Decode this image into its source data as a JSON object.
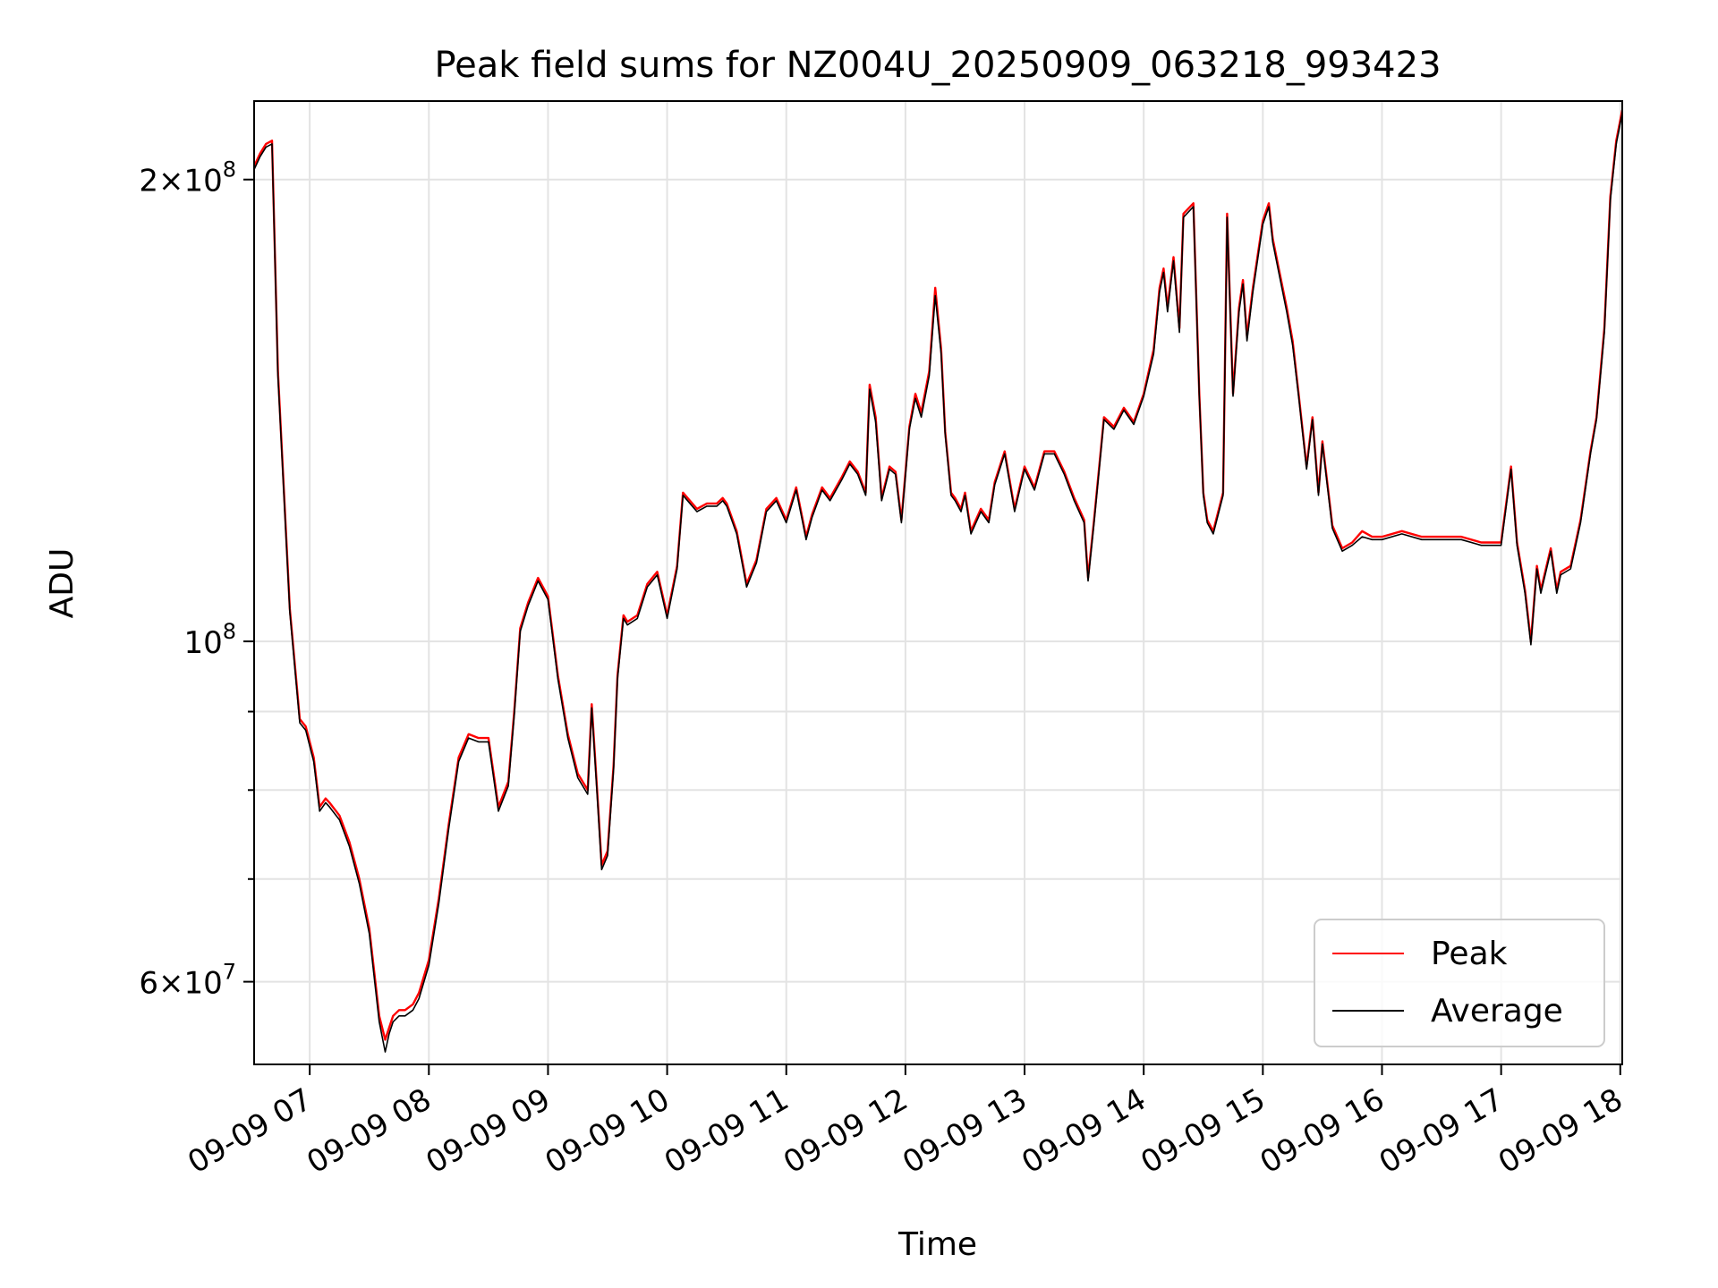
{
  "chart_data": {
    "type": "line",
    "title": "Peak field sums for NZ004U_20250909_063218_993423",
    "xlabel": "Time",
    "ylabel": "ADU",
    "y_scale": "log",
    "ylim": [
      53000000,
      225000000
    ],
    "xlim": [
      "2025-09-09 06:32",
      "2025-09-09 18:01"
    ],
    "grid": true,
    "legend_position": "lower-right",
    "x_ticks": [
      {
        "t": "2025-09-09 07:00",
        "label": "09-09 07"
      },
      {
        "t": "2025-09-09 08:00",
        "label": "09-09 08"
      },
      {
        "t": "2025-09-09 09:00",
        "label": "09-09 09"
      },
      {
        "t": "2025-09-09 10:00",
        "label": "09-09 10"
      },
      {
        "t": "2025-09-09 11:00",
        "label": "09-09 11"
      },
      {
        "t": "2025-09-09 12:00",
        "label": "09-09 12"
      },
      {
        "t": "2025-09-09 13:00",
        "label": "09-09 13"
      },
      {
        "t": "2025-09-09 14:00",
        "label": "09-09 14"
      },
      {
        "t": "2025-09-09 15:00",
        "label": "09-09 15"
      },
      {
        "t": "2025-09-09 16:00",
        "label": "09-09 16"
      },
      {
        "t": "2025-09-09 17:00",
        "label": "09-09 17"
      },
      {
        "t": "2025-09-09 18:00",
        "label": "09-09 18"
      }
    ],
    "y_major_ticks": [
      {
        "value": 60000000,
        "mantissa": "6",
        "exponent": "7"
      },
      {
        "value": 100000000,
        "mantissa": "",
        "exponent": "8"
      },
      {
        "value": 200000000,
        "mantissa": "2",
        "exponent": "8"
      }
    ],
    "y_minor_ticks": [
      70000000,
      80000000,
      90000000
    ],
    "series": [
      {
        "name": "Peak",
        "color": "#ff0000",
        "x": [
          "2025-09-09 06:32",
          "2025-09-09 06:35",
          "2025-09-09 06:38",
          "2025-09-09 06:41",
          "2025-09-09 06:44",
          "2025-09-09 06:50",
          "2025-09-09 06:55",
          "2025-09-09 06:58",
          "2025-09-09 07:02",
          "2025-09-09 07:05",
          "2025-09-09 07:08",
          "2025-09-09 07:10",
          "2025-09-09 07:15",
          "2025-09-09 07:20",
          "2025-09-09 07:25",
          "2025-09-09 07:30",
          "2025-09-09 07:35",
          "2025-09-09 07:38",
          "2025-09-09 07:40",
          "2025-09-09 07:42",
          "2025-09-09 07:45",
          "2025-09-09 07:48",
          "2025-09-09 07:52",
          "2025-09-09 07:55",
          "2025-09-09 08:00",
          "2025-09-09 08:05",
          "2025-09-09 08:10",
          "2025-09-09 08:15",
          "2025-09-09 08:20",
          "2025-09-09 08:25",
          "2025-09-09 08:30",
          "2025-09-09 08:35",
          "2025-09-09 08:40",
          "2025-09-09 08:43",
          "2025-09-09 08:46",
          "2025-09-09 08:50",
          "2025-09-09 08:55",
          "2025-09-09 09:00",
          "2025-09-09 09:05",
          "2025-09-09 09:10",
          "2025-09-09 09:15",
          "2025-09-09 09:20",
          "2025-09-09 09:22",
          "2025-09-09 09:25",
          "2025-09-09 09:27",
          "2025-09-09 09:30",
          "2025-09-09 09:33",
          "2025-09-09 09:35",
          "2025-09-09 09:38",
          "2025-09-09 09:40",
          "2025-09-09 09:45",
          "2025-09-09 09:50",
          "2025-09-09 09:55",
          "2025-09-09 10:00",
          "2025-09-09 10:05",
          "2025-09-09 10:08",
          "2025-09-09 10:15",
          "2025-09-09 10:20",
          "2025-09-09 10:25",
          "2025-09-09 10:28",
          "2025-09-09 10:30",
          "2025-09-09 10:35",
          "2025-09-09 10:40",
          "2025-09-09 10:45",
          "2025-09-09 10:50",
          "2025-09-09 10:55",
          "2025-09-09 11:00",
          "2025-09-09 11:05",
          "2025-09-09 11:10",
          "2025-09-09 11:13",
          "2025-09-09 11:18",
          "2025-09-09 11:22",
          "2025-09-09 11:28",
          "2025-09-09 11:32",
          "2025-09-09 11:36",
          "2025-09-09 11:40",
          "2025-09-09 11:42",
          "2025-09-09 11:45",
          "2025-09-09 11:48",
          "2025-09-09 11:52",
          "2025-09-09 11:55",
          "2025-09-09 11:58",
          "2025-09-09 12:02",
          "2025-09-09 12:05",
          "2025-09-09 12:08",
          "2025-09-09 12:12",
          "2025-09-09 12:15",
          "2025-09-09 12:18",
          "2025-09-09 12:20",
          "2025-09-09 12:23",
          "2025-09-09 12:25",
          "2025-09-09 12:28",
          "2025-09-09 12:30",
          "2025-09-09 12:33",
          "2025-09-09 12:38",
          "2025-09-09 12:42",
          "2025-09-09 12:45",
          "2025-09-09 12:50",
          "2025-09-09 12:55",
          "2025-09-09 13:00",
          "2025-09-09 13:05",
          "2025-09-09 13:10",
          "2025-09-09 13:15",
          "2025-09-09 13:20",
          "2025-09-09 13:25",
          "2025-09-09 13:30",
          "2025-09-09 13:32",
          "2025-09-09 13:35",
          "2025-09-09 13:40",
          "2025-09-09 13:45",
          "2025-09-09 13:50",
          "2025-09-09 13:55",
          "2025-09-09 14:00",
          "2025-09-09 14:05",
          "2025-09-09 14:08",
          "2025-09-09 14:10",
          "2025-09-09 14:12",
          "2025-09-09 14:15",
          "2025-09-09 14:18",
          "2025-09-09 14:20",
          "2025-09-09 14:25",
          "2025-09-09 14:28",
          "2025-09-09 14:30",
          "2025-09-09 14:32",
          "2025-09-09 14:35",
          "2025-09-09 14:40",
          "2025-09-09 14:42",
          "2025-09-09 14:45",
          "2025-09-09 14:48",
          "2025-09-09 14:50",
          "2025-09-09 14:52",
          "2025-09-09 14:55",
          "2025-09-09 15:00",
          "2025-09-09 15:03",
          "2025-09-09 15:05",
          "2025-09-09 15:08",
          "2025-09-09 15:12",
          "2025-09-09 15:15",
          "2025-09-09 15:18",
          "2025-09-09 15:22",
          "2025-09-09 15:25",
          "2025-09-09 15:28",
          "2025-09-09 15:30",
          "2025-09-09 15:35",
          "2025-09-09 15:40",
          "2025-09-09 15:45",
          "2025-09-09 15:50",
          "2025-09-09 15:55",
          "2025-09-09 16:00",
          "2025-09-09 16:10",
          "2025-09-09 16:20",
          "2025-09-09 16:30",
          "2025-09-09 16:40",
          "2025-09-09 16:50",
          "2025-09-09 17:00",
          "2025-09-09 17:05",
          "2025-09-09 17:08",
          "2025-09-09 17:12",
          "2025-09-09 17:15",
          "2025-09-09 17:18",
          "2025-09-09 17:20",
          "2025-09-09 17:25",
          "2025-09-09 17:28",
          "2025-09-09 17:30",
          "2025-09-09 17:35",
          "2025-09-09 17:40",
          "2025-09-09 17:45",
          "2025-09-09 17:48",
          "2025-09-09 17:52",
          "2025-09-09 17:55",
          "2025-09-09 17:58",
          "2025-09-09 18:01"
        ],
        "values": [
          204000000,
          208000000,
          211000000,
          212000000,
          150000000,
          105000000,
          89000000,
          88000000,
          84000000,
          78000000,
          79000000,
          78500000,
          77000000,
          74000000,
          70000000,
          65000000,
          57000000,
          55000000,
          56000000,
          57000000,
          57500000,
          57500000,
          58000000,
          59000000,
          62000000,
          68000000,
          76000000,
          84000000,
          87000000,
          86500000,
          86500000,
          78000000,
          81000000,
          90000000,
          102000000,
          106000000,
          110000000,
          107000000,
          95000000,
          87000000,
          82000000,
          80000000,
          91000000,
          79000000,
          71500000,
          73000000,
          83000000,
          95000000,
          104000000,
          103000000,
          104000000,
          109000000,
          111000000,
          104000000,
          112000000,
          125000000,
          122000000,
          123000000,
          123000000,
          124000000,
          123000000,
          118000000,
          109000000,
          113000000,
          122000000,
          124000000,
          120000000,
          126000000,
          117000000,
          121000000,
          126000000,
          124000000,
          128000000,
          131000000,
          129000000,
          125000000,
          147000000,
          140000000,
          124000000,
          130000000,
          129000000,
          120000000,
          138000000,
          145000000,
          141000000,
          150000000,
          170000000,
          155000000,
          137000000,
          125000000,
          124000000,
          122000000,
          125000000,
          118000000,
          122000000,
          120000000,
          127000000,
          133000000,
          122000000,
          130000000,
          126000000,
          133000000,
          133000000,
          129000000,
          124000000,
          120000000,
          110000000,
          120000000,
          140000000,
          138000000,
          142000000,
          139000000,
          145000000,
          155000000,
          170000000,
          175000000,
          165000000,
          178000000,
          160000000,
          190000000,
          193000000,
          145000000,
          125000000,
          120000000,
          118000000,
          125000000,
          190000000,
          145000000,
          165000000,
          172000000,
          158000000,
          170000000,
          188000000,
          193000000,
          183000000,
          175000000,
          165000000,
          157000000,
          145000000,
          130000000,
          140000000,
          125000000,
          135000000,
          119000000,
          115000000,
          116000000,
          118000000,
          117000000,
          117000000,
          118000000,
          117000000,
          117000000,
          117000000,
          116000000,
          116000000,
          130000000,
          116000000,
          108000000,
          100000000,
          112000000,
          108000000,
          115000000,
          108000000,
          111000000,
          112000000,
          120000000,
          133000000,
          140000000,
          160000000,
          195000000,
          212000000,
          222000000
        ]
      },
      {
        "name": "Average",
        "color": "#000000",
        "x": [
          "2025-09-09 06:32",
          "2025-09-09 06:35",
          "2025-09-09 06:38",
          "2025-09-09 06:41",
          "2025-09-09 06:44",
          "2025-09-09 06:50",
          "2025-09-09 06:55",
          "2025-09-09 06:58",
          "2025-09-09 07:02",
          "2025-09-09 07:05",
          "2025-09-09 07:08",
          "2025-09-09 07:10",
          "2025-09-09 07:15",
          "2025-09-09 07:20",
          "2025-09-09 07:25",
          "2025-09-09 07:30",
          "2025-09-09 07:35",
          "2025-09-09 07:38",
          "2025-09-09 07:40",
          "2025-09-09 07:42",
          "2025-09-09 07:45",
          "2025-09-09 07:48",
          "2025-09-09 07:52",
          "2025-09-09 07:55",
          "2025-09-09 08:00",
          "2025-09-09 08:05",
          "2025-09-09 08:10",
          "2025-09-09 08:15",
          "2025-09-09 08:20",
          "2025-09-09 08:25",
          "2025-09-09 08:30",
          "2025-09-09 08:35",
          "2025-09-09 08:40",
          "2025-09-09 08:43",
          "2025-09-09 08:46",
          "2025-09-09 08:50",
          "2025-09-09 08:55",
          "2025-09-09 09:00",
          "2025-09-09 09:05",
          "2025-09-09 09:10",
          "2025-09-09 09:15",
          "2025-09-09 09:20",
          "2025-09-09 09:22",
          "2025-09-09 09:25",
          "2025-09-09 09:27",
          "2025-09-09 09:30",
          "2025-09-09 09:33",
          "2025-09-09 09:35",
          "2025-09-09 09:38",
          "2025-09-09 09:40",
          "2025-09-09 09:45",
          "2025-09-09 09:50",
          "2025-09-09 09:55",
          "2025-09-09 10:00",
          "2025-09-09 10:05",
          "2025-09-09 10:08",
          "2025-09-09 10:15",
          "2025-09-09 10:20",
          "2025-09-09 10:25",
          "2025-09-09 10:28",
          "2025-09-09 10:30",
          "2025-09-09 10:35",
          "2025-09-09 10:40",
          "2025-09-09 10:45",
          "2025-09-09 10:50",
          "2025-09-09 10:55",
          "2025-09-09 11:00",
          "2025-09-09 11:05",
          "2025-09-09 11:10",
          "2025-09-09 11:13",
          "2025-09-09 11:18",
          "2025-09-09 11:22",
          "2025-09-09 11:28",
          "2025-09-09 11:32",
          "2025-09-09 11:36",
          "2025-09-09 11:40",
          "2025-09-09 11:42",
          "2025-09-09 11:45",
          "2025-09-09 11:48",
          "2025-09-09 11:52",
          "2025-09-09 11:55",
          "2025-09-09 11:58",
          "2025-09-09 12:02",
          "2025-09-09 12:05",
          "2025-09-09 12:08",
          "2025-09-09 12:12",
          "2025-09-09 12:15",
          "2025-09-09 12:18",
          "2025-09-09 12:20",
          "2025-09-09 12:23",
          "2025-09-09 12:25",
          "2025-09-09 12:28",
          "2025-09-09 12:30",
          "2025-09-09 12:33",
          "2025-09-09 12:38",
          "2025-09-09 12:42",
          "2025-09-09 12:45",
          "2025-09-09 12:50",
          "2025-09-09 12:55",
          "2025-09-09 13:00",
          "2025-09-09 13:05",
          "2025-09-09 13:10",
          "2025-09-09 13:15",
          "2025-09-09 13:20",
          "2025-09-09 13:25",
          "2025-09-09 13:30",
          "2025-09-09 13:32",
          "2025-09-09 13:35",
          "2025-09-09 13:40",
          "2025-09-09 13:45",
          "2025-09-09 13:50",
          "2025-09-09 13:55",
          "2025-09-09 14:00",
          "2025-09-09 14:05",
          "2025-09-09 14:08",
          "2025-09-09 14:10",
          "2025-09-09 14:12",
          "2025-09-09 14:15",
          "2025-09-09 14:18",
          "2025-09-09 14:20",
          "2025-09-09 14:25",
          "2025-09-09 14:28",
          "2025-09-09 14:30",
          "2025-09-09 14:32",
          "2025-09-09 14:35",
          "2025-09-09 14:40",
          "2025-09-09 14:42",
          "2025-09-09 14:45",
          "2025-09-09 14:48",
          "2025-09-09 14:50",
          "2025-09-09 14:52",
          "2025-09-09 14:55",
          "2025-09-09 15:00",
          "2025-09-09 15:03",
          "2025-09-09 15:05",
          "2025-09-09 15:08",
          "2025-09-09 15:12",
          "2025-09-09 15:15",
          "2025-09-09 15:18",
          "2025-09-09 15:22",
          "2025-09-09 15:25",
          "2025-09-09 15:28",
          "2025-09-09 15:30",
          "2025-09-09 15:35",
          "2025-09-09 15:40",
          "2025-09-09 15:45",
          "2025-09-09 15:50",
          "2025-09-09 15:55",
          "2025-09-09 16:00",
          "2025-09-09 16:10",
          "2025-09-09 16:20",
          "2025-09-09 16:30",
          "2025-09-09 16:40",
          "2025-09-09 16:50",
          "2025-09-09 17:00",
          "2025-09-09 17:05",
          "2025-09-09 17:08",
          "2025-09-09 17:12",
          "2025-09-09 17:15",
          "2025-09-09 17:18",
          "2025-09-09 17:20",
          "2025-09-09 17:25",
          "2025-09-09 17:28",
          "2025-09-09 17:30",
          "2025-09-09 17:35",
          "2025-09-09 17:40",
          "2025-09-09 17:45",
          "2025-09-09 17:48",
          "2025-09-09 17:52",
          "2025-09-09 17:55",
          "2025-09-09 17:58",
          "2025-09-09 18:01"
        ],
        "values": [
          203000000,
          207000000,
          210000000,
          211000000,
          149000000,
          104500000,
          88500000,
          87500000,
          83500000,
          77500000,
          78500000,
          78000000,
          76500000,
          73500000,
          69500000,
          64500000,
          56500000,
          54000000,
          55500000,
          56500000,
          57000000,
          57000000,
          57500000,
          58500000,
          61500000,
          67500000,
          75500000,
          83500000,
          86500000,
          86000000,
          86000000,
          77500000,
          80500000,
          89500000,
          101500000,
          105500000,
          109500000,
          106500000,
          94500000,
          86500000,
          81500000,
          79500000,
          90500000,
          78500000,
          71000000,
          72500000,
          82500000,
          94500000,
          103500000,
          102500000,
          103500000,
          108500000,
          110500000,
          103500000,
          111500000,
          124500000,
          121500000,
          122500000,
          122500000,
          123500000,
          122500000,
          117500000,
          108500000,
          112500000,
          121500000,
          123500000,
          119500000,
          125500000,
          116500000,
          120500000,
          125500000,
          123500000,
          127500000,
          130500000,
          128500000,
          124500000,
          146000000,
          139000000,
          123500000,
          129500000,
          128500000,
          119500000,
          137500000,
          144000000,
          140000000,
          149000000,
          168000000,
          154000000,
          136500000,
          124500000,
          123500000,
          121500000,
          124500000,
          117500000,
          121500000,
          119500000,
          126500000,
          132500000,
          121500000,
          129500000,
          125500000,
          132500000,
          132500000,
          128500000,
          123500000,
          119500000,
          109500000,
          119500000,
          139500000,
          137500000,
          141500000,
          138500000,
          144500000,
          154000000,
          169000000,
          174000000,
          164000000,
          177000000,
          159000000,
          189000000,
          192000000,
          144500000,
          124500000,
          119500000,
          117500000,
          124500000,
          189000000,
          144500000,
          164000000,
          171000000,
          157000000,
          169000000,
          187000000,
          192000000,
          182000000,
          174000000,
          164000000,
          156000000,
          144500000,
          129500000,
          139500000,
          124500000,
          134500000,
          118500000,
          114500000,
          115500000,
          117000000,
          116500000,
          116500000,
          117500000,
          116500000,
          116500000,
          116500000,
          115500000,
          115500000,
          129500000,
          115500000,
          107500000,
          99500000,
          111500000,
          107500000,
          114500000,
          107500000,
          110500000,
          111500000,
          119500000,
          132500000,
          139500000,
          159000000,
          194000000,
          211000000,
          221000000
        ]
      }
    ]
  }
}
